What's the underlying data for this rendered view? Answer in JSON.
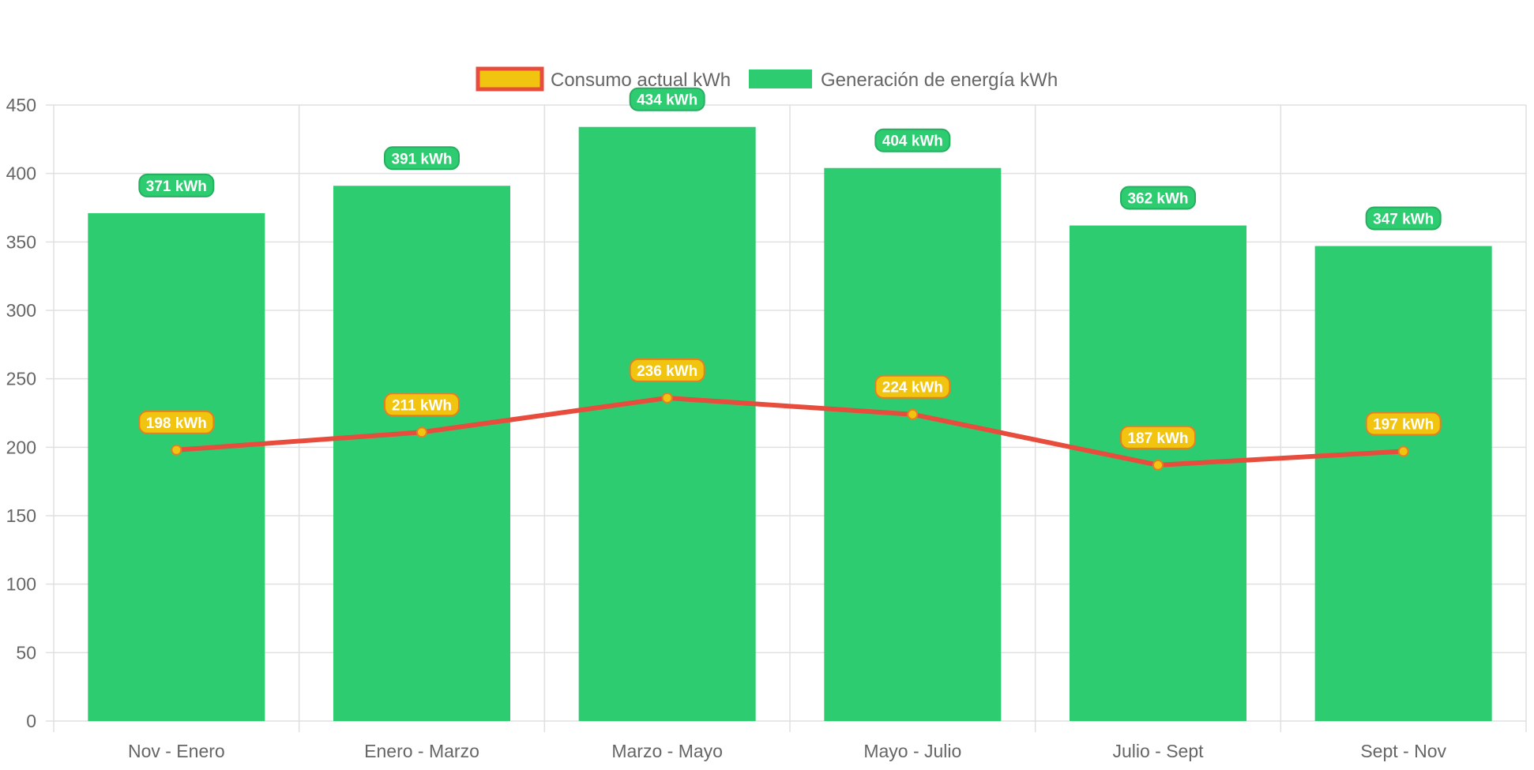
{
  "chart_data": {
    "type": "bar",
    "categories": [
      "Nov - Enero",
      "Enero - Marzo",
      "Marzo - Mayo",
      "Mayo - Julio",
      "Julio - Sept",
      "Sept - Nov"
    ],
    "series": [
      {
        "name": "Consumo actual kWh",
        "type": "line",
        "values": [
          198,
          211,
          236,
          224,
          187,
          197
        ],
        "labels": [
          "198 kWh",
          "211 kWh",
          "236 kWh",
          "224 kWh",
          "187 kWh",
          "197 kWh"
        ],
        "line_color": "#e74c3c",
        "fill_color": "#f1c40f",
        "label_border_color": "#e67e22"
      },
      {
        "name": "Generación de energía kWh",
        "type": "bar",
        "values": [
          371,
          391,
          434,
          404,
          362,
          347
        ],
        "labels": [
          "371 kWh",
          "391 kWh",
          "434 kWh",
          "404 kWh",
          "362 kWh",
          "347 kWh"
        ],
        "fill_color": "#2ecc71",
        "label_border_color": "#27ae60"
      }
    ],
    "ylim": [
      0,
      450
    ],
    "yticks": [
      "0",
      "50",
      "100",
      "150",
      "200",
      "250",
      "300",
      "350",
      "400",
      "450"
    ],
    "grid": true,
    "legend_position": "top-center",
    "colors": {
      "grid": "#e0e0e0",
      "tick_text": "#666666"
    }
  }
}
